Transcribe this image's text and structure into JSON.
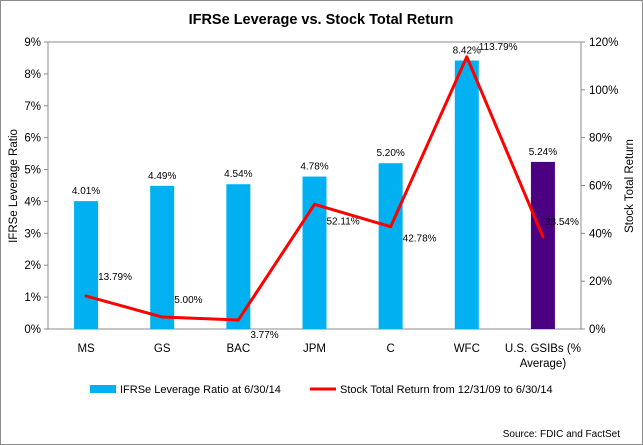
{
  "chart_data": {
    "type": "bar+line",
    "title": "IFRSe Leverage vs. Stock Total Return",
    "categories": [
      "MS",
      "GS",
      "BAC",
      "JPM",
      "C",
      "WFC",
      "U.S. GSIBs (% Average)"
    ],
    "category_lines": [
      [
        "MS"
      ],
      [
        "GS"
      ],
      [
        "BAC"
      ],
      [
        "JPM"
      ],
      [
        "C"
      ],
      [
        "WFC"
      ],
      [
        "U.S. GSIBs (%",
        "Average)"
      ]
    ],
    "series": [
      {
        "name": "IFRSe Leverage Ratio at 6/30/14",
        "type": "bar",
        "axis": "left",
        "values": [
          4.01,
          4.49,
          4.54,
          4.78,
          5.2,
          8.42,
          5.24
        ],
        "labels": [
          "4.01%",
          "4.49%",
          "4.54%",
          "4.78%",
          "5.20%",
          "8.42%",
          "5.24%"
        ],
        "colors": [
          "#00b0f0",
          "#00b0f0",
          "#00b0f0",
          "#00b0f0",
          "#00b0f0",
          "#00b0f0",
          "#4b0082"
        ]
      },
      {
        "name": "Stock Total Return from 12/31/09 to 6/30/14",
        "type": "line",
        "axis": "right",
        "values": [
          13.79,
          5.0,
          3.77,
          52.11,
          42.78,
          113.79,
          38.54
        ],
        "labels": [
          "13.79%",
          "5.00%",
          "3.77%",
          "52.11%",
          "42.78%",
          "113.79%",
          "38.54%"
        ],
        "color": "#ff0000"
      }
    ],
    "y_left": {
      "label": "IFRSe Leverage Ratio",
      "range": [
        0,
        9
      ],
      "ticks": [
        "0%",
        "1%",
        "2%",
        "3%",
        "4%",
        "5%",
        "6%",
        "7%",
        "8%",
        "9%"
      ]
    },
    "y_right": {
      "label": "Stock Total Return",
      "range": [
        0,
        120
      ],
      "ticks": [
        "0%",
        "20%",
        "40%",
        "60%",
        "80%",
        "100%",
        "120%"
      ]
    },
    "grid": false,
    "legend_position": "bottom",
    "source": "Source:  FDIC and FactSet"
  }
}
